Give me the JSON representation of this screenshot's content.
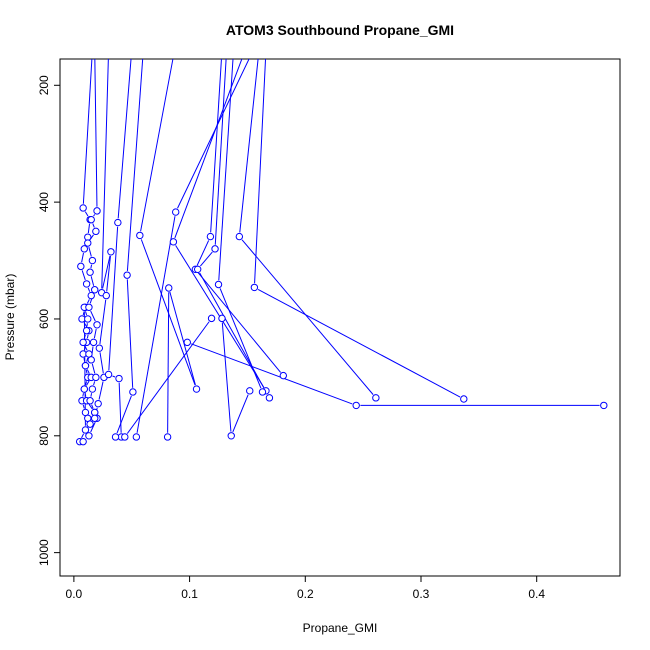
{
  "chart_data": {
    "type": "line",
    "title": "ATOM3 Southbound Propane_GMI",
    "xlabel": "Propane_GMI",
    "ylabel": "Pressure (mbar)",
    "xlim": [
      -0.012,
      0.472
    ],
    "ylim": [
      1040,
      155
    ],
    "y_reversed": true,
    "xticks": [
      0.0,
      0.1,
      0.2,
      0.3,
      0.4
    ],
    "xtick_labels": [
      "0.0",
      "0.1",
      "0.2",
      "0.3",
      "0.4"
    ],
    "yticks": [
      200,
      400,
      600,
      800,
      1000
    ],
    "ytick_labels": [
      "200",
      "400",
      "600",
      "800",
      "1000"
    ],
    "series_color": "#0000ff",
    "marker": "open-circle",
    "grid": false,
    "series": [
      {
        "x": [
          0.016,
          0.008,
          0.014,
          0.012,
          0.009,
          0.006,
          0.011,
          0.015,
          0.01,
          0.007,
          0.013,
          0.011,
          0.008,
          0.01,
          0.012,
          0.009,
          0.007,
          0.01,
          0.012,
          0.014,
          0.018,
          0.011,
          0.009,
          0.015,
          0.01,
          0.013,
          0.008,
          0.011,
          0.012,
          0.009,
          0.01,
          0.005,
          0.008
        ],
        "y": [
          140,
          410,
          430,
          460,
          480,
          510,
          540,
          560,
          580,
          600,
          620,
          640,
          660,
          680,
          700,
          720,
          740,
          760,
          770,
          780,
          760,
          740,
          720,
          700,
          680,
          660,
          640,
          620,
          600,
          580,
          790,
          810,
          810
        ]
      },
      {
        "x": [
          0.018,
          0.02,
          0.015,
          0.019,
          0.012,
          0.016,
          0.014,
          0.018,
          0.013,
          0.02,
          0.017,
          0.015,
          0.019,
          0.016,
          0.014,
          0.018,
          0.02,
          0.013
        ],
        "y": [
          140,
          415,
          430,
          450,
          470,
          500,
          520,
          550,
          580,
          610,
          640,
          670,
          700,
          720,
          740,
          760,
          770,
          800
        ]
      },
      {
        "x": [
          0.03,
          0.024,
          0.032,
          0.028,
          0.022,
          0.026,
          0.021,
          0.018
        ],
        "y": [
          140,
          555,
          485,
          560,
          650,
          700,
          745,
          770
        ]
      },
      {
        "x": [
          0.05,
          0.038,
          0.03,
          0.039,
          0.041
        ],
        "y": [
          140,
          435,
          695,
          702,
          802
        ]
      },
      {
        "x": [
          0.06,
          0.046,
          0.051,
          0.036
        ],
        "y": [
          140,
          525,
          725,
          802
        ]
      },
      {
        "x": [
          0.087,
          0.057,
          0.106,
          0.082,
          0.081
        ],
        "y": [
          140,
          457,
          720,
          547,
          802
        ]
      },
      {
        "x": [
          0.155,
          0.088,
          0.054
        ],
        "y": [
          140,
          417,
          802
        ]
      },
      {
        "x": [
          0.148,
          0.086,
          0.166
        ],
        "y": [
          140,
          468,
          723
        ]
      },
      {
        "x": [
          0.128,
          0.118,
          0.105,
          0.181
        ],
        "y": [
          140,
          459,
          515,
          697
        ]
      },
      {
        "x": [
          0.132,
          0.122,
          0.107,
          0.169
        ],
        "y": [
          140,
          480,
          515,
          735
        ]
      },
      {
        "x": [
          0.138,
          0.125,
          0.163
        ],
        "y": [
          140,
          541,
          725
        ]
      },
      {
        "x": [
          0.16,
          0.143,
          0.261
        ],
        "y": [
          140,
          459,
          735
        ]
      },
      {
        "x": [
          0.166,
          0.156,
          0.337
        ],
        "y": [
          140,
          546,
          737
        ]
      },
      {
        "x": [
          0.098,
          0.244,
          0.458
        ],
        "y": [
          640,
          748,
          748
        ]
      },
      {
        "x": [
          0.119,
          0.044
        ],
        "y": [
          599,
          802
        ]
      },
      {
        "x": [
          0.128,
          0.136,
          0.152
        ],
        "y": [
          599,
          800,
          723
        ]
      }
    ]
  }
}
